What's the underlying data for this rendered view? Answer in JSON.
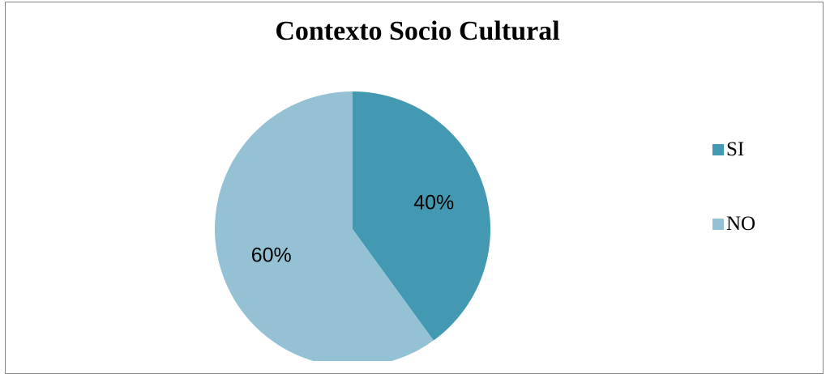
{
  "chart_data": {
    "type": "pie",
    "title": "Contexto Socio Cultural",
    "start_angle_deg": 0,
    "direction": "clockwise",
    "categories": [
      "SI",
      "NO"
    ],
    "values": [
      40,
      60
    ],
    "labels": [
      "40%",
      "60%"
    ],
    "colors": [
      "#4399b2",
      "#94c2d4"
    ],
    "legend_position": "right"
  }
}
